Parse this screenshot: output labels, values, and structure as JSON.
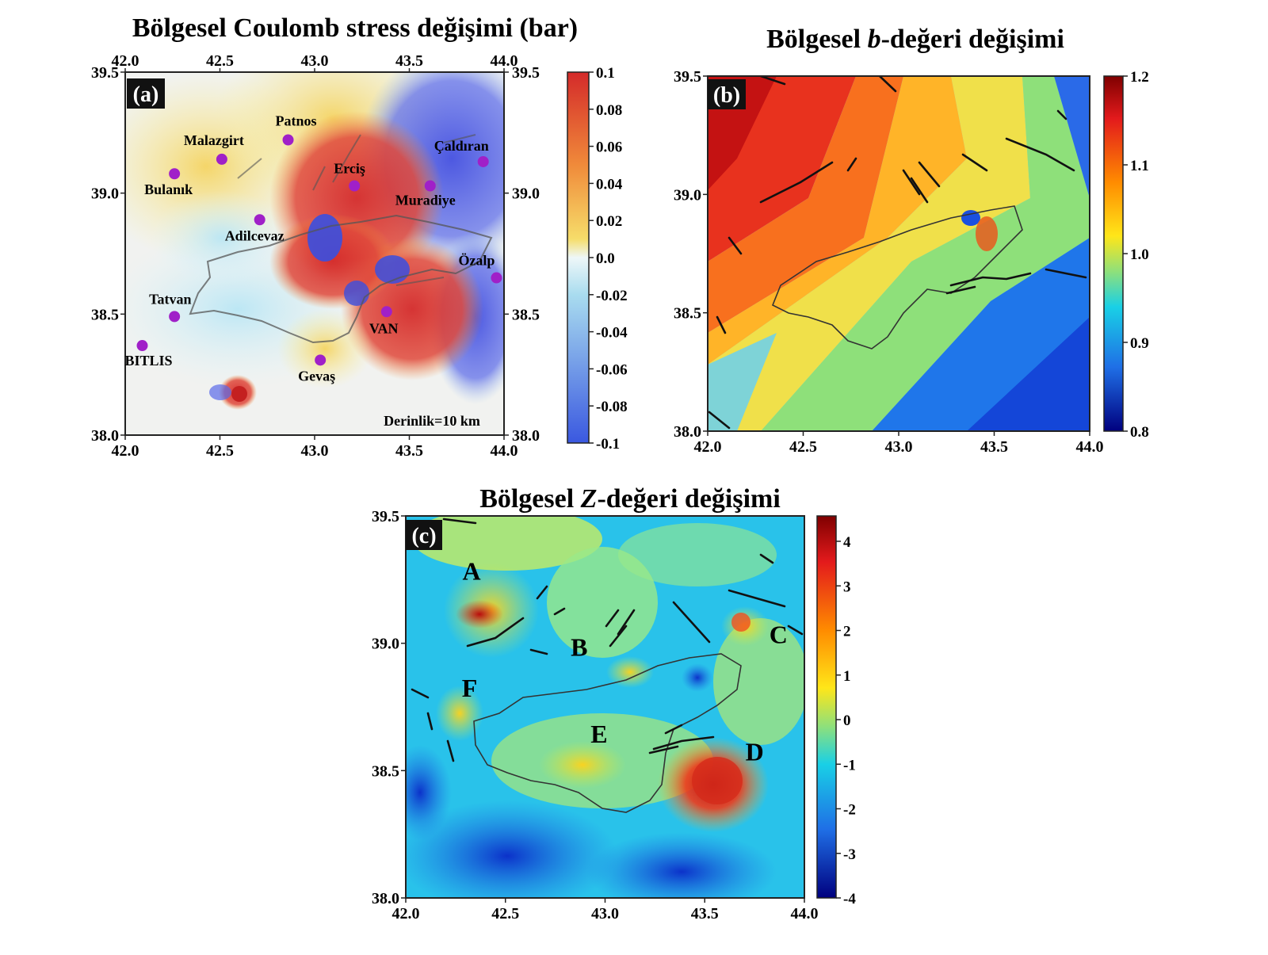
{
  "panels": {
    "a": {
      "title": "Bölgesel Coulomb stress değişimi (bar)",
      "tag": "(a)",
      "lon_ticks": [
        "42.0",
        "42.5",
        "43.0",
        "43.5",
        "44.0"
      ],
      "lat_ticks": [
        "39.5",
        "39.0",
        "38.5",
        "38.0"
      ],
      "depth_note": "Derinlik=10 km",
      "colorbar": {
        "ticks": [
          "0.1",
          "0.08",
          "0.06",
          "0.04",
          "0.02",
          "0.0",
          "-0.02",
          "-0.04",
          "-0.06",
          "-0.08",
          "-0.1"
        ],
        "colors": [
          "#d42a2a",
          "#f08a3a",
          "#f6dd6a",
          "#e8f4f6",
          "#3a58e0"
        ]
      },
      "cities": [
        {
          "name": "Patnos",
          "lon": 42.86,
          "lat": 39.22
        },
        {
          "name": "Malazgirt",
          "lon": 42.51,
          "lat": 39.14
        },
        {
          "name": "Çaldıran",
          "lon": 43.89,
          "lat": 39.13
        },
        {
          "name": "Bulanık",
          "lon": 42.26,
          "lat": 39.08
        },
        {
          "name": "Erciş",
          "lon": 43.21,
          "lat": 39.03
        },
        {
          "name": "Muradiye",
          "lon": 43.61,
          "lat": 39.03
        },
        {
          "name": "Adilcevaz",
          "lon": 42.71,
          "lat": 38.89
        },
        {
          "name": "Özalp",
          "lon": 43.96,
          "lat": 38.65
        },
        {
          "name": "Tatvan",
          "lon": 42.26,
          "lat": 38.49
        },
        {
          "name": "VAN",
          "lon": 43.38,
          "lat": 38.51
        },
        {
          "name": "BITLIS",
          "lon": 42.09,
          "lat": 38.37
        },
        {
          "name": "Gevaş",
          "lon": 43.03,
          "lat": 38.31
        }
      ],
      "marker_color": "#a020c8"
    },
    "b": {
      "title_prefix": "Bölgesel ",
      "title_italic": "b",
      "title_suffix": "-değeri değişimi",
      "tag": "(b)",
      "lon_ticks": [
        "42.0",
        "42.5",
        "43.0",
        "43.5",
        "44.0"
      ],
      "lat_ticks": [
        "39.5",
        "39.0",
        "38.5",
        "38.0"
      ],
      "colorbar": {
        "ticks": [
          "1.2",
          "1.1",
          "1.0",
          "0.9",
          "0.8"
        ]
      }
    },
    "c": {
      "title_prefix": "Bölgesel ",
      "title_italic": "Z",
      "title_suffix": "-değeri değişimi",
      "tag": "(c)",
      "lon_ticks": [
        "42.0",
        "42.5",
        "43.0",
        "43.5",
        "44.0"
      ],
      "lat_ticks": [
        "39.5",
        "39.0",
        "38.5",
        "38.0"
      ],
      "colorbar": {
        "ticks": [
          "4",
          "3",
          "2",
          "1",
          "0",
          "-1",
          "-2",
          "-3",
          "-4"
        ]
      },
      "zones": [
        {
          "label": "A",
          "lon": 42.33,
          "lat": 39.25
        },
        {
          "label": "B",
          "lon": 42.87,
          "lat": 38.95
        },
        {
          "label": "C",
          "lon": 43.87,
          "lat": 39.0
        },
        {
          "label": "D",
          "lon": 43.75,
          "lat": 38.54
        },
        {
          "label": "E",
          "lon": 42.97,
          "lat": 38.61
        },
        {
          "label": "F",
          "lon": 42.32,
          "lat": 38.79
        }
      ]
    }
  }
}
